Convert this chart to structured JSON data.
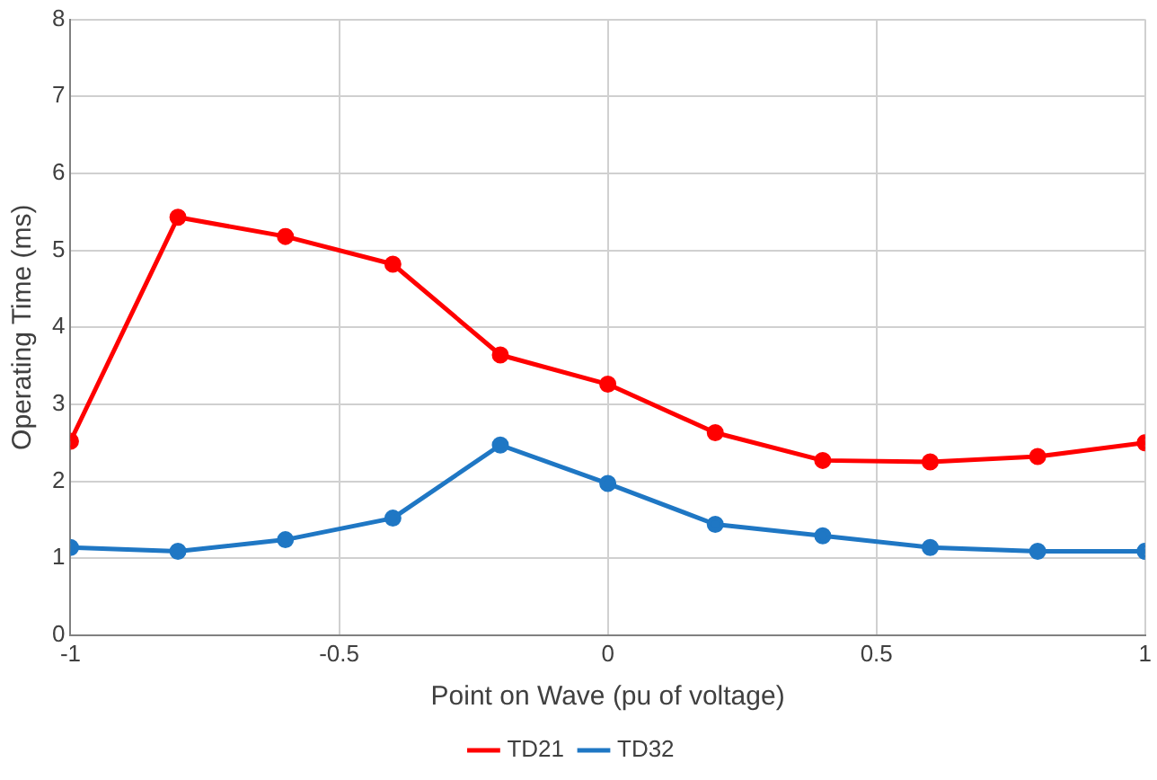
{
  "chart_data": {
    "type": "line",
    "xlabel": "Point on Wave (pu of voltage)",
    "ylabel": "Operating Time (ms)",
    "x": [
      -1,
      -0.8,
      -0.6,
      -0.4,
      -0.2,
      0,
      0.2,
      0.4,
      0.6,
      0.8,
      1
    ],
    "series": [
      {
        "name": "TD21",
        "color": "#ff0000",
        "values": [
          2.52,
          5.43,
          5.18,
          4.82,
          3.64,
          3.26,
          2.63,
          2.27,
          2.25,
          2.32,
          2.5
        ]
      },
      {
        "name": "TD32",
        "color": "#1f77c4",
        "values": [
          1.14,
          1.09,
          1.24,
          1.52,
          2.47,
          1.97,
          1.44,
          1.29,
          1.14,
          1.09,
          1.09
        ]
      }
    ],
    "xlim": [
      -1,
      1
    ],
    "xticks": [
      -1,
      -0.5,
      0,
      0.5,
      1
    ],
    "ylim": [
      0,
      8
    ],
    "yticks": [
      0,
      1,
      2,
      3,
      4,
      5,
      6,
      7,
      8
    ],
    "grid": true,
    "legend": "bottom",
    "marker": "circle",
    "line_style": "solid"
  }
}
